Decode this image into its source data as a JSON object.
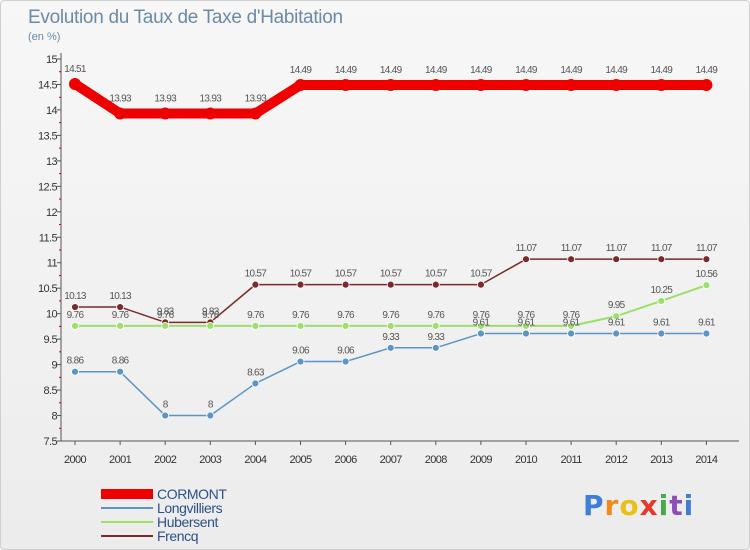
{
  "title": "Evolution du Taux de Taxe d'Habitation",
  "unit": "(en %)",
  "logo": {
    "text": "Proxiti",
    "colors": [
      "#3f7ed6",
      "#f08a1c",
      "#e8c21a",
      "#e23b2e",
      "#4aa84a",
      "#8b4fb7",
      "#3f7ed6"
    ]
  },
  "chart_data": {
    "type": "line",
    "x": [
      "2000",
      "2001",
      "2002",
      "2003",
      "2004",
      "2005",
      "2006",
      "2007",
      "2008",
      "2009",
      "2010",
      "2011",
      "2012",
      "2013",
      "2014"
    ],
    "ylim": [
      7.5,
      15
    ],
    "yticks": [
      "7.5",
      "8",
      "8.5",
      "9",
      "9.5",
      "10",
      "10.5",
      "11",
      "11.5",
      "12",
      "12.5",
      "13",
      "13.5",
      "14",
      "14.5",
      "15"
    ],
    "grid": false,
    "legend_position": "bottom-left",
    "series": [
      {
        "name": "CORMONT",
        "color": "#ee0000",
        "values": [
          14.51,
          13.93,
          13.93,
          13.93,
          13.93,
          14.49,
          14.49,
          14.49,
          14.49,
          14.49,
          14.49,
          14.49,
          14.49,
          14.49,
          14.49
        ],
        "labels": [
          "14.51",
          "13.93",
          "13.93",
          "13.93",
          "13.93",
          "14.49",
          "14.49",
          "14.49",
          "14.49",
          "14.49",
          "14.49",
          "14.49",
          "14.49",
          "14.49",
          "14.49"
        ]
      },
      {
        "name": "Longvilliers",
        "color": "#5b94c6",
        "values": [
          8.86,
          8.86,
          8,
          8,
          8.63,
          9.06,
          9.06,
          9.33,
          9.33,
          9.61,
          9.61,
          9.61,
          9.61,
          9.61,
          9.61
        ],
        "labels": [
          "8.86",
          "8.86",
          "8",
          "8",
          "8.63",
          "9.06",
          "9.06",
          "9.33",
          "9.33",
          "9.61",
          "9.61",
          "9.61",
          "9.61",
          "9.61",
          "9.61"
        ]
      },
      {
        "name": "Hubersent",
        "color": "#9be068",
        "values": [
          9.76,
          9.76,
          9.76,
          9.76,
          9.76,
          9.76,
          9.76,
          9.76,
          9.76,
          9.76,
          9.76,
          9.76,
          9.95,
          10.25,
          10.56
        ],
        "labels": [
          "9.76",
          "9.76",
          "9.76",
          "9.76",
          "9.76",
          "9.76",
          "9.76",
          "9.76",
          "9.76",
          "9.76",
          "9.76",
          "9.76",
          "9.95",
          "10.25",
          "10.56"
        ]
      },
      {
        "name": "Frencq",
        "color": "#7a2a2a",
        "values": [
          10.13,
          10.13,
          9.83,
          9.83,
          10.57,
          10.57,
          10.57,
          10.57,
          10.57,
          10.57,
          11.07,
          11.07,
          11.07,
          11.07,
          11.07
        ],
        "labels": [
          "10.13",
          "10.13",
          "9.83",
          "9.83",
          "10.57",
          "10.57",
          "10.57",
          "10.57",
          "10.57",
          "10.57",
          "11.07",
          "11.07",
          "11.07",
          "11.07",
          "11.07"
        ]
      }
    ]
  }
}
